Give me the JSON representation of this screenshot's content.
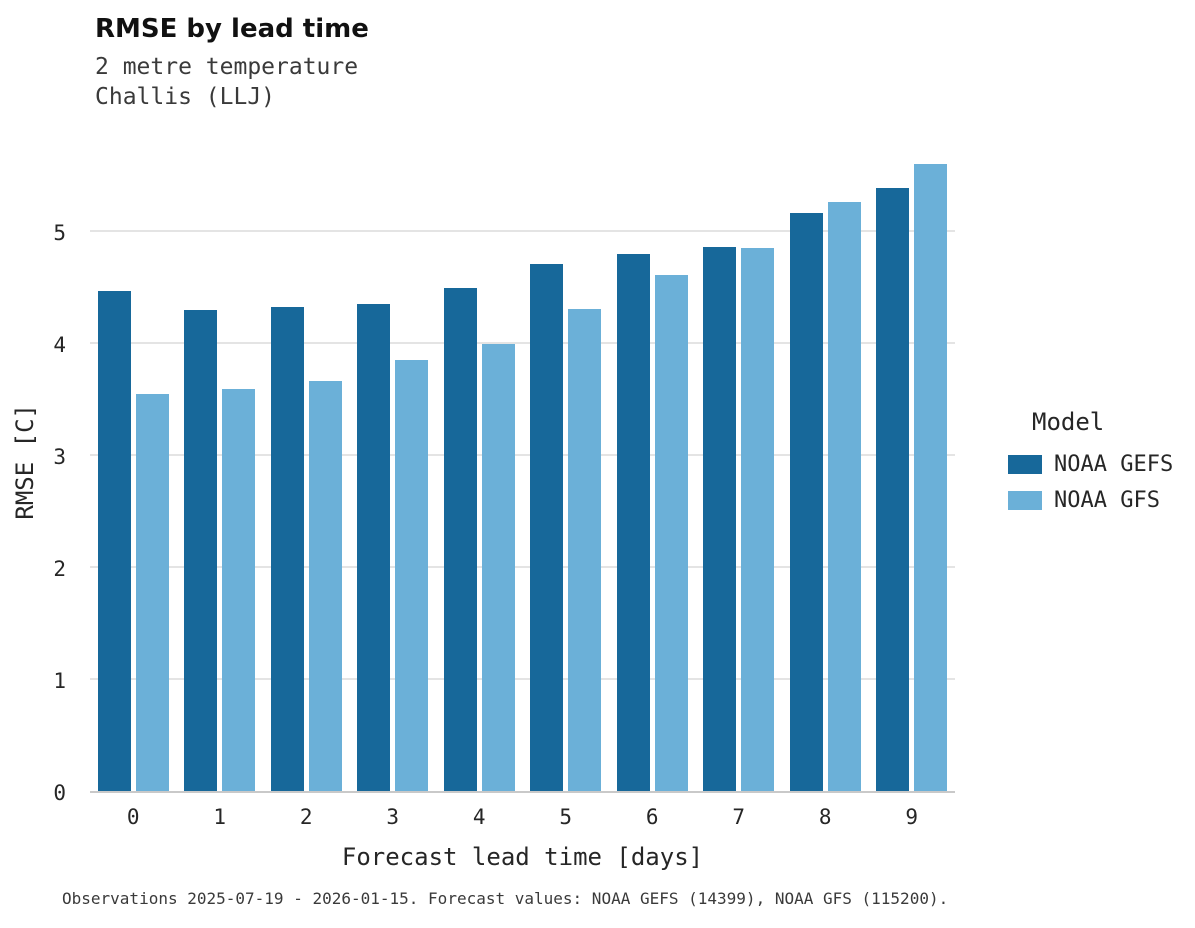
{
  "title": "RMSE by lead time",
  "subtitle_line1": "2 metre temperature",
  "subtitle_line2": "Challis (LLJ)",
  "caption": "Observations 2025-07-19 - 2026-01-15. Forecast values: NOAA GEFS (14399), NOAA GFS (115200).",
  "legend": {
    "title": "Model",
    "items": [
      {
        "label": "NOAA GEFS",
        "color": "#17689a"
      },
      {
        "label": "NOAA GFS",
        "color": "#6bb0d8"
      }
    ]
  },
  "chart_data": {
    "type": "bar",
    "title": "RMSE by lead time",
    "subtitle": "2 metre temperature — Challis (LLJ)",
    "xlabel": "Forecast lead time [days]",
    "ylabel": "RMSE [C]",
    "categories": [
      "0",
      "1",
      "2",
      "3",
      "4",
      "5",
      "6",
      "7",
      "8",
      "9"
    ],
    "series": [
      {
        "name": "NOAA GEFS",
        "color": "#17689a",
        "values": [
          4.46,
          4.29,
          4.32,
          4.35,
          4.49,
          4.7,
          4.79,
          4.86,
          5.16,
          5.38
        ]
      },
      {
        "name": "NOAA GFS",
        "color": "#6bb0d8",
        "values": [
          3.54,
          3.59,
          3.66,
          3.85,
          3.99,
          4.3,
          4.61,
          4.85,
          5.26,
          5.6
        ]
      }
    ],
    "ylim": [
      0,
      5.9
    ],
    "yticks": [
      0,
      1,
      2,
      3,
      4,
      5
    ],
    "grid": true,
    "legend_position": "right"
  }
}
